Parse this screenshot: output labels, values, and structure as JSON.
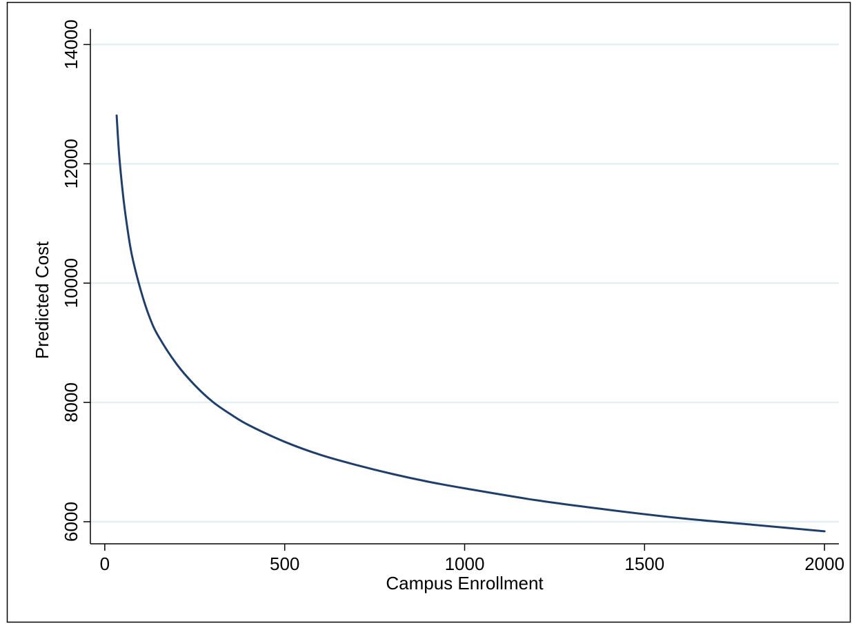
{
  "chart_data": {
    "type": "line",
    "title": "",
    "xlabel": "Campus Enrollment",
    "ylabel": "Predicted Cost",
    "xlim": [
      -40,
      2040
    ],
    "ylim": [
      5630,
      14260
    ],
    "x_ticks": [
      0,
      500,
      1000,
      1500,
      2000
    ],
    "y_ticks": [
      6000,
      8000,
      10000,
      12000,
      14000
    ],
    "x_tick_labels": [
      "0",
      "500",
      "1000",
      "1500",
      "2000"
    ],
    "y_tick_labels": [
      "6000",
      "8000",
      "10000",
      "12000",
      "14000"
    ],
    "grid": "horizontal",
    "legend": "none",
    "line_color": "#1f3f6a",
    "grid_color": "#e3eff1",
    "series": [
      {
        "x": [
          33,
          40,
          50,
          60,
          75,
          100,
          125,
          150,
          200,
          250,
          300,
          350,
          400,
          500,
          600,
          700,
          800,
          900,
          1000,
          1200,
          1400,
          1600,
          1800,
          2000
        ],
        "values": [
          12810,
          12150,
          11520,
          11040,
          10480,
          9880,
          9420,
          9100,
          8640,
          8290,
          8010,
          7800,
          7620,
          7340,
          7120,
          6950,
          6800,
          6670,
          6560,
          6360,
          6200,
          6060,
          5950,
          5840
        ]
      }
    ]
  }
}
